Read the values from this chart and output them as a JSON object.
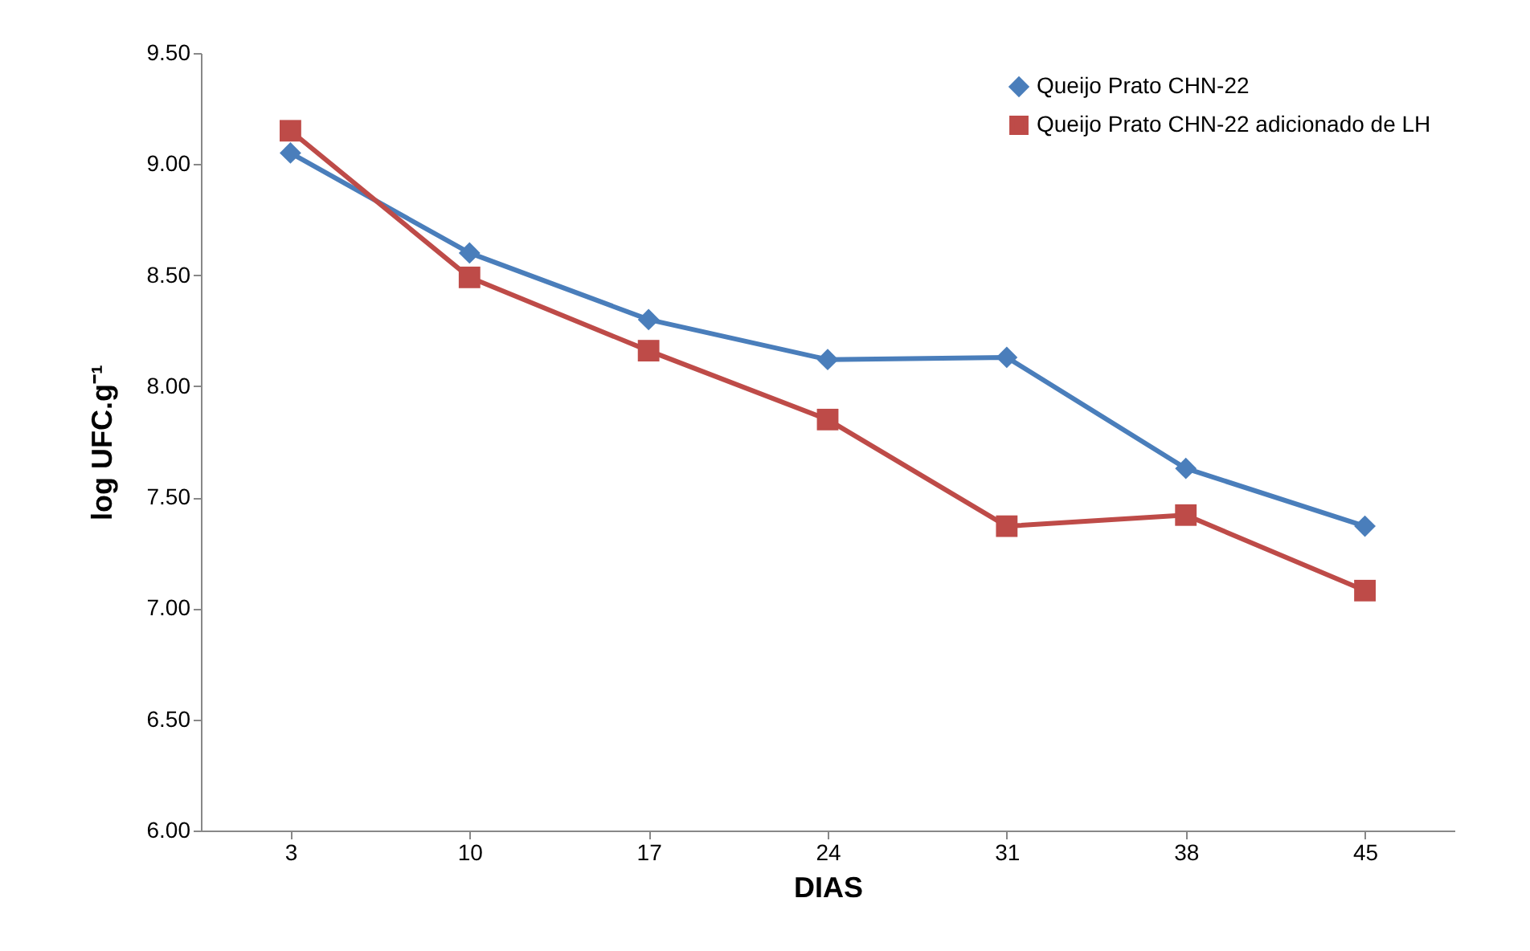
{
  "chart_data": {
    "type": "line",
    "xlabel": "DIAS",
    "ylabel": "log UFC.g⁻¹",
    "categories": [
      "3",
      "10",
      "17",
      "24",
      "31",
      "38",
      "45"
    ],
    "series": [
      {
        "name": "Queijo Prato CHN-22",
        "color": "#4a7ebb",
        "marker": "diamond",
        "values": [
          9.05,
          8.6,
          8.3,
          8.12,
          8.13,
          7.63,
          7.37
        ]
      },
      {
        "name": "Queijo Prato CHN-22 adicionado de LH",
        "color": "#be4b48",
        "marker": "square",
        "values": [
          9.15,
          8.49,
          8.16,
          7.85,
          7.37,
          7.42,
          7.08
        ]
      }
    ],
    "ylim": [
      6,
      9.5
    ],
    "yticks": [
      {
        "value": 6,
        "label": "6.00"
      },
      {
        "value": 6.5,
        "label": "6.50"
      },
      {
        "value": 7,
        "label": "7.00"
      },
      {
        "value": 7.5,
        "label": "7.50"
      },
      {
        "value": 8,
        "label": "8.00"
      },
      {
        "value": 8.5,
        "label": "8.50"
      },
      {
        "value": 9,
        "label": "9.00"
      },
      {
        "value": 9.5,
        "label": "9.50"
      }
    ],
    "grid": false,
    "legend": "top right",
    "line_style": "solid"
  }
}
